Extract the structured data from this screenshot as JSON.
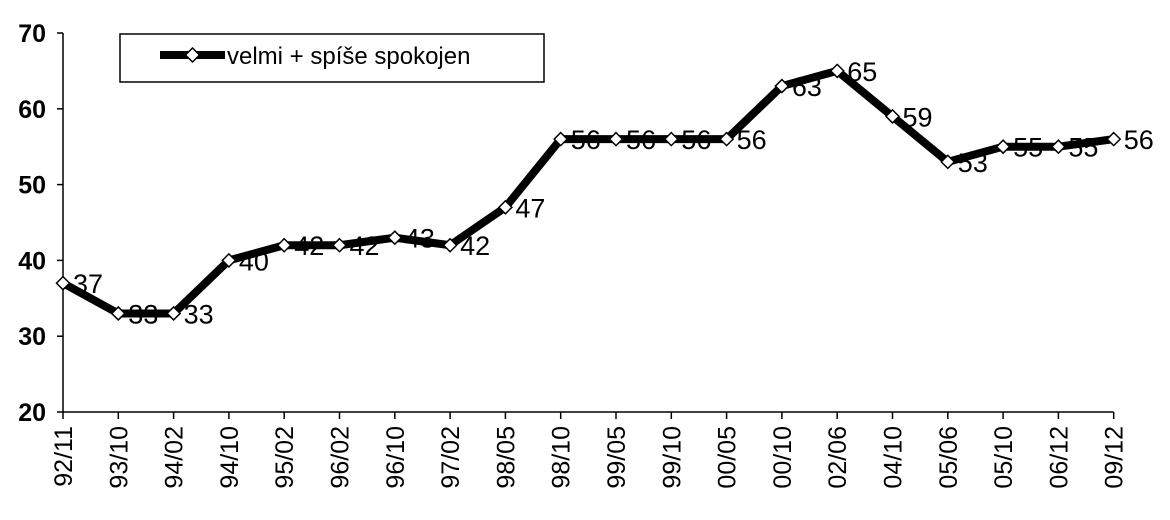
{
  "chart_data": {
    "type": "line",
    "title": "",
    "xlabel": "",
    "ylabel": "",
    "ylim": [
      20,
      70
    ],
    "yticks": [
      20,
      30,
      40,
      50,
      60,
      70
    ],
    "grid": false,
    "legend_placement": "top-left",
    "categories": [
      "92/11",
      "93/10",
      "94/02",
      "94/10",
      "95/02",
      "96/02",
      "96/10",
      "97/02",
      "98/05",
      "98/10",
      "99/05",
      "99/10",
      "00/05",
      "00/10",
      "02/06",
      "04/10",
      "05/06",
      "05/10",
      "06/12",
      "09/12"
    ],
    "series": [
      {
        "name": "velmi + spíše spokojen",
        "values": [
          37,
          33,
          33,
          40,
          42,
          42,
          43,
          42,
          47,
          56,
          56,
          56,
          56,
          63,
          65,
          59,
          53,
          55,
          55,
          56
        ],
        "labels": [
          "37",
          "33",
          "33",
          "40",
          "42",
          "42",
          "43",
          "42",
          "47",
          "56",
          "56",
          "56",
          "56",
          "63",
          "65",
          "59",
          "53",
          "55",
          "55",
          "56"
        ],
        "color": "#000000",
        "marker": "diamond"
      }
    ]
  }
}
